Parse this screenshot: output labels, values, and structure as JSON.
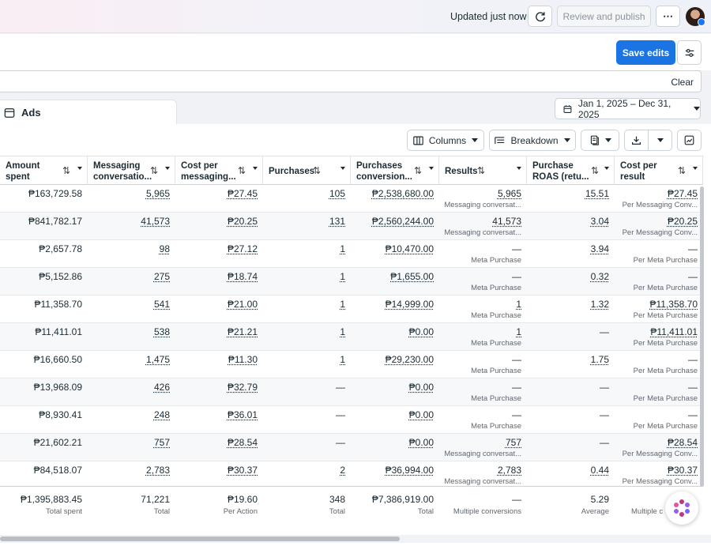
{
  "topbar": {
    "updated_text": "Updated just now",
    "review_publish_label": "Review and publish",
    "more_label": "⋯"
  },
  "actions": {
    "save_label": "Save edits"
  },
  "filter": {
    "clear_label": "Clear"
  },
  "tabs": {
    "ads_label": "Ads"
  },
  "date_range": {
    "label": "Jan 1, 2025 – Dec 31, 2025"
  },
  "toolbar": {
    "columns_label": "Columns",
    "breakdown_label": "Breakdown"
  },
  "colors": {
    "accent": "#1b74e4",
    "text": "#1c2b33",
    "muted": "#606770"
  },
  "table": {
    "headers": [
      {
        "label": "Amount spent"
      },
      {
        "label": "Messaging conversatio..."
      },
      {
        "label": "Cost per messaging..."
      },
      {
        "label": "Purchases"
      },
      {
        "label": "Purchases conversion..."
      },
      {
        "label": "Results"
      },
      {
        "label": "Purchase ROAS (retu..."
      },
      {
        "label": "Cost per result"
      }
    ],
    "rows": [
      {
        "amount": "₱163,729.58",
        "msg": "5,965",
        "cpm": "₱27.45",
        "purch": "105",
        "pconv": "₱2,538,680.00",
        "results": "5,965",
        "results_sub": "Messaging conversat...",
        "roas": "15.51",
        "cpr": "₱27.45",
        "cpr_sub": "Per Messaging Conv..."
      },
      {
        "amount": "₱841,782.17",
        "msg": "41,573",
        "cpm": "₱20.25",
        "purch": "131",
        "pconv": "₱2,560,244.00",
        "results": "41,573",
        "results_sub": "Messaging conversat...",
        "roas": "3.04",
        "cpr": "₱20.25",
        "cpr_sub": "Per Messaging Conv..."
      },
      {
        "amount": "₱2,657.78",
        "msg": "98",
        "cpm": "₱27.12",
        "purch": "1",
        "pconv": "₱10,470.00",
        "results": "—",
        "results_sub": "Meta Purchase",
        "roas": "3.94",
        "cpr": "—",
        "cpr_sub": "Per Meta Purchase"
      },
      {
        "amount": "₱5,152.86",
        "msg": "275",
        "cpm": "₱18.74",
        "purch": "1",
        "pconv": "₱1,655.00",
        "results": "—",
        "results_sub": "Meta Purchase",
        "roas": "0.32",
        "cpr": "—",
        "cpr_sub": "Per Meta Purchase"
      },
      {
        "amount": "₱11,358.70",
        "msg": "541",
        "cpm": "₱21.00",
        "purch": "1",
        "pconv": "₱14,999.00",
        "results": "1",
        "results_sub": "Meta Purchase",
        "roas": "1.32",
        "cpr": "₱11,358.70",
        "cpr_sub": "Per Meta Purchase"
      },
      {
        "amount": "₱11,411.01",
        "msg": "538",
        "cpm": "₱21.21",
        "purch": "1",
        "pconv": "₱0.00",
        "results": "1",
        "results_sub": "Meta Purchase",
        "roas": "—",
        "cpr": "₱11,411.01",
        "cpr_sub": "Per Meta Purchase"
      },
      {
        "amount": "₱16,660.50",
        "msg": "1,475",
        "cpm": "₱11.30",
        "purch": "1",
        "pconv": "₱29,230.00",
        "results": "—",
        "results_sub": "Meta Purchase",
        "roas": "1.75",
        "cpr": "—",
        "cpr_sub": "Per Meta Purchase"
      },
      {
        "amount": "₱13,968.09",
        "msg": "426",
        "cpm": "₱32.79",
        "purch": "—",
        "pconv": "₱0.00",
        "results": "—",
        "results_sub": "Meta Purchase",
        "roas": "—",
        "cpr": "—",
        "cpr_sub": "Per Meta Purchase"
      },
      {
        "amount": "₱8,930.41",
        "msg": "248",
        "cpm": "₱36.01",
        "purch": "—",
        "pconv": "₱0.00",
        "results": "—",
        "results_sub": "Meta Purchase",
        "roas": "—",
        "cpr": "—",
        "cpr_sub": "Per Meta Purchase"
      },
      {
        "amount": "₱21,602.21",
        "msg": "757",
        "cpm": "₱28.54",
        "purch": "—",
        "pconv": "₱0.00",
        "results": "757",
        "results_sub": "Messaging conversat...",
        "roas": "—",
        "cpr": "₱28.54",
        "cpr_sub": "Per Messaging Conv..."
      },
      {
        "amount": "₱84,518.07",
        "msg": "2,783",
        "cpm": "₱30.37",
        "purch": "2",
        "pconv": "₱36,994.00",
        "results": "2,783",
        "results_sub": "Messaging conversat...",
        "roas": "0.44",
        "cpr": "₱30.37",
        "cpr_sub": "Per Messaging Conv..."
      }
    ],
    "totals": {
      "amount": "₱1,395,883.45",
      "amount_sub": "Total spent",
      "msg": "71,221",
      "msg_sub": "Total",
      "cpm": "₱19.60",
      "cpm_sub": "Per Action",
      "purch": "348",
      "purch_sub": "Total",
      "pconv": "₱7,386,919.00",
      "pconv_sub": "Total",
      "results": "—",
      "results_sub": "Multiple conversions",
      "roas": "5.29",
      "roas_sub": "Average",
      "cpr_sub": "Multiple c"
    }
  }
}
